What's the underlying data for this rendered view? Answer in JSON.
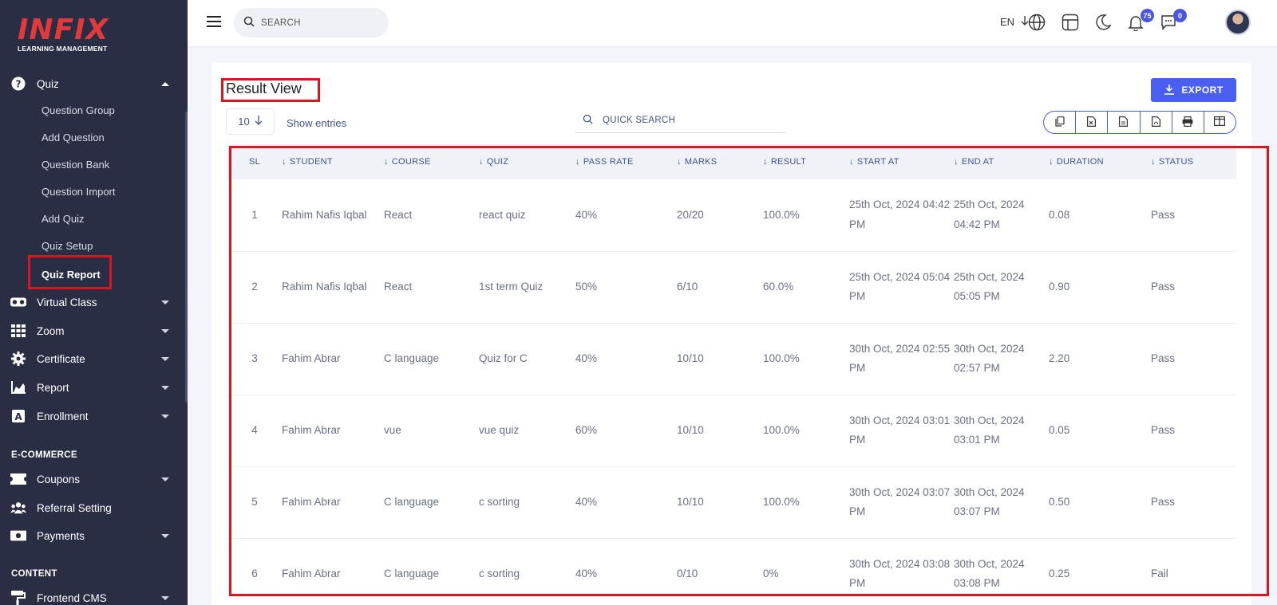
{
  "brand": {
    "name": "INFIX",
    "tagline": "LEARNING MANAGEMENT"
  },
  "colors": {
    "sidebar": "#2a2e45",
    "accent": "#4a5ff0",
    "highlight": "#e0141e",
    "logo": "#e23a3a"
  },
  "sidebar": {
    "quiz": {
      "label": "Quiz",
      "icon": "question-circle-icon"
    },
    "quiz_items": [
      "Question Group",
      "Add Question",
      "Question Bank",
      "Question Import",
      "Add Quiz",
      "Quiz Setup",
      "Quiz Report"
    ],
    "active_item": "Quiz Report",
    "menu": [
      {
        "label": "Virtual Class",
        "icon": "vr-glasses-icon"
      },
      {
        "label": "Zoom",
        "icon": "grid-icon"
      },
      {
        "label": "Certificate",
        "icon": "gear-badge-icon"
      },
      {
        "label": "Report",
        "icon": "area-chart-icon"
      },
      {
        "label": "Enrollment",
        "icon": "a-box-icon"
      }
    ],
    "section_ecommerce": "E-COMMERCE",
    "ecommerce": [
      {
        "label": "Coupons",
        "icon": "ticket-icon"
      },
      {
        "label": "Referral Setting",
        "icon": "users-icon"
      },
      {
        "label": "Payments",
        "icon": "money-icon"
      }
    ],
    "section_content": "CONTENT",
    "content": [
      {
        "label": "Frontend CMS",
        "icon": "paint-roller-icon"
      }
    ]
  },
  "topbar": {
    "search_placeholder": "SEARCH",
    "language": "EN",
    "notifications_count": "75",
    "messages_count": "0"
  },
  "main": {
    "title": "Result View",
    "export_label": "EXPORT",
    "entries_value": "10",
    "show_entries": "Show entries",
    "quick_search_placeholder": "QUICK SEARCH",
    "columns": [
      "SL",
      "STUDENT",
      "COURSE",
      "QUIZ",
      "PASS RATE",
      "MARKS",
      "RESULT",
      "START AT",
      "END AT",
      "DURATION",
      "STATUS"
    ],
    "rows": [
      {
        "sl": "1",
        "student": "Rahim Nafis Iqbal",
        "course": "React",
        "quiz": "react quiz",
        "pass_rate": "40%",
        "marks": "20/20",
        "result": "100.0%",
        "start": "25th Oct, 2024 04:42 PM",
        "end": "25th Oct, 2024 04:42 PM",
        "duration": "0.08",
        "status": "Pass"
      },
      {
        "sl": "2",
        "student": "Rahim Nafis Iqbal",
        "course": "React",
        "quiz": "1st term Quiz",
        "pass_rate": "50%",
        "marks": "6/10",
        "result": "60.0%",
        "start": "25th Oct, 2024 05:04 PM",
        "end": "25th Oct, 2024 05:05 PM",
        "duration": "0.90",
        "status": "Pass"
      },
      {
        "sl": "3",
        "student": "Fahim Abrar",
        "course": "C language",
        "quiz": "Quiz for C",
        "pass_rate": "40%",
        "marks": "10/10",
        "result": "100.0%",
        "start": "30th Oct, 2024 02:55 PM",
        "end": "30th Oct, 2024 02:57 PM",
        "duration": "2.20",
        "status": "Pass"
      },
      {
        "sl": "4",
        "student": "Fahim Abrar",
        "course": "vue",
        "quiz": "vue quiz",
        "pass_rate": "60%",
        "marks": "10/10",
        "result": "100.0%",
        "start": "30th Oct, 2024 03:01 PM",
        "end": "30th Oct, 2024 03:01 PM",
        "duration": "0.05",
        "status": "Pass"
      },
      {
        "sl": "5",
        "student": "Fahim Abrar",
        "course": "C language",
        "quiz": "c sorting",
        "pass_rate": "40%",
        "marks": "10/10",
        "result": "100.0%",
        "start": "30th Oct, 2024 03:07 PM",
        "end": "30th Oct, 2024 03:07 PM",
        "duration": "0.50",
        "status": "Pass"
      },
      {
        "sl": "6",
        "student": "Fahim Abrar",
        "course": "C language",
        "quiz": "c sorting",
        "pass_rate": "40%",
        "marks": "0/10",
        "result": "0%",
        "start": "30th Oct, 2024 03:08 PM",
        "end": "30th Oct, 2024 03:08 PM",
        "duration": "0.25",
        "status": "Fail"
      }
    ]
  }
}
